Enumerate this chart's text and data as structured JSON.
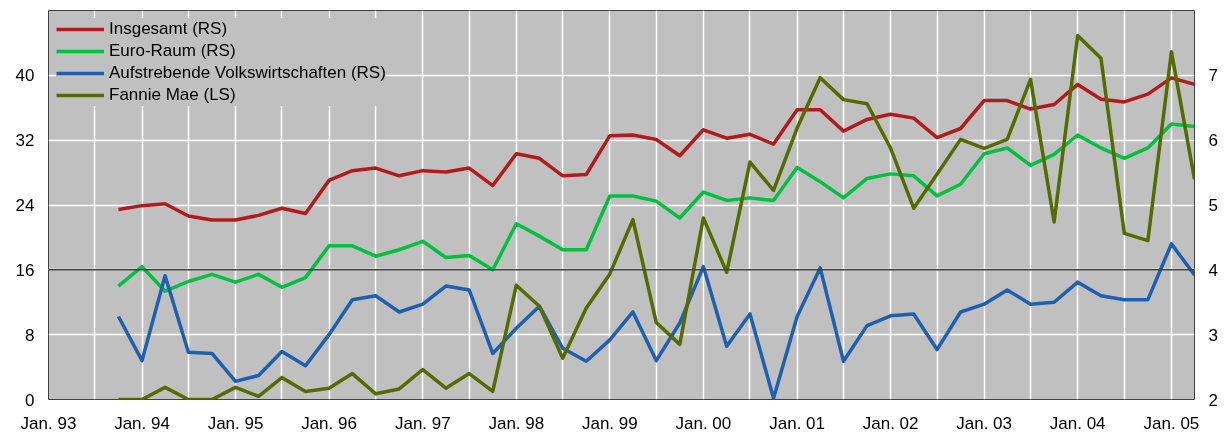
{
  "chart_data": {
    "type": "line",
    "x": [
      "1993-10",
      "1994-01",
      "1994-04",
      "1994-07",
      "1994-10",
      "1995-01",
      "1995-04",
      "1995-07",
      "1995-10",
      "1996-01",
      "1996-04",
      "1996-07",
      "1996-10",
      "1997-01",
      "1997-04",
      "1997-07",
      "1997-10",
      "1998-01",
      "1998-04",
      "1998-07",
      "1998-10",
      "1999-01",
      "1999-04",
      "1999-07",
      "1999-10",
      "2000-01",
      "2000-04",
      "2000-07",
      "2000-10",
      "2001-01",
      "2001-04",
      "2001-07",
      "2001-10",
      "2002-01",
      "2002-04",
      "2002-07",
      "2002-10",
      "2003-01",
      "2003-04",
      "2003-07",
      "2003-10",
      "2004-01",
      "2004-04",
      "2004-07",
      "2004-10",
      "2005-01",
      "2005-04"
    ],
    "series": [
      {
        "name": "Insgesamt (RS)",
        "color": "#b01c1c",
        "axis": "y2",
        "values": [
          4.93,
          4.99,
          5.02,
          4.83,
          4.77,
          4.77,
          4.84,
          4.95,
          4.87,
          5.38,
          5.53,
          5.57,
          5.45,
          5.53,
          5.51,
          5.57,
          5.3,
          5.79,
          5.72,
          5.45,
          5.47,
          6.07,
          6.08,
          6.01,
          5.76,
          6.16,
          6.03,
          6.09,
          5.94,
          6.47,
          6.47,
          6.14,
          6.32,
          6.4,
          6.34,
          6.04,
          6.18,
          6.61,
          6.61,
          6.48,
          6.55,
          6.86,
          6.63,
          6.59,
          6.71,
          6.96,
          6.86
        ]
      },
      {
        "name": "Euro-Raum (RS)",
        "color": "#00c040",
        "axis": "y2",
        "values": [
          3.75,
          4.05,
          3.67,
          3.82,
          3.93,
          3.81,
          3.93,
          3.73,
          3.88,
          4.37,
          4.37,
          4.21,
          4.31,
          4.44,
          4.19,
          4.22,
          4.0,
          4.71,
          4.52,
          4.31,
          4.31,
          5.14,
          5.14,
          5.06,
          4.8,
          5.2,
          5.07,
          5.11,
          5.07,
          5.58,
          5.36,
          5.11,
          5.41,
          5.48,
          5.45,
          5.14,
          5.32,
          5.79,
          5.88,
          5.61,
          5.78,
          6.08,
          5.88,
          5.72,
          5.88,
          6.25,
          6.21
        ]
      },
      {
        "name": "Aufstrebende Volkswirtschaften (RS)",
        "color": "#1f5fb0",
        "axis": "y2",
        "values": [
          3.28,
          2.6,
          3.91,
          2.73,
          2.71,
          2.28,
          2.37,
          2.74,
          2.52,
          3.0,
          3.54,
          3.6,
          3.35,
          3.47,
          3.75,
          3.69,
          2.71,
          3.1,
          3.44,
          2.79,
          2.59,
          2.92,
          3.35,
          2.6,
          3.18,
          4.05,
          2.82,
          3.32,
          2.02,
          3.28,
          4.03,
          2.59,
          3.14,
          3.29,
          3.32,
          2.77,
          3.35,
          3.47,
          3.69,
          3.47,
          3.5,
          3.81,
          3.6,
          3.54,
          3.54,
          4.4,
          3.92
        ]
      },
      {
        "name": "Fannie Mae (LS)",
        "color": "#556b00",
        "axis": "y",
        "values": [
          0,
          0,
          1.5,
          0,
          0,
          1.5,
          0.4,
          2.7,
          1.0,
          1.4,
          3.2,
          0.7,
          1.3,
          3.7,
          1.4,
          3.2,
          1.0,
          14.1,
          11.5,
          5.1,
          11.3,
          15.5,
          22.2,
          9.5,
          6.8,
          22.4,
          15.7,
          29.3,
          25.8,
          33.5,
          39.7,
          37.0,
          36.5,
          31.0,
          23.6,
          27.8,
          32.1,
          31.0,
          32.1,
          39.5,
          21.9,
          44.9,
          42.1,
          20.5,
          19.6,
          42.9,
          27.2
        ]
      }
    ],
    "xlim": [
      "1993-01",
      "2005-04"
    ],
    "xticks": [
      {
        "value": "1993-01",
        "label": "Jan. 93"
      },
      {
        "value": "1993-07",
        "label": null
      },
      {
        "value": "1994-01",
        "label": "Jan. 94"
      },
      {
        "value": "1994-07",
        "label": null
      },
      {
        "value": "1995-01",
        "label": "Jan. 95"
      },
      {
        "value": "1995-07",
        "label": null
      },
      {
        "value": "1996-01",
        "label": "Jan. 96"
      },
      {
        "value": "1996-07",
        "label": null
      },
      {
        "value": "1997-01",
        "label": "Jan. 97"
      },
      {
        "value": "1997-07",
        "label": null
      },
      {
        "value": "1998-01",
        "label": "Jan. 98"
      },
      {
        "value": "1998-07",
        "label": null
      },
      {
        "value": "1999-01",
        "label": "Jan. 99"
      },
      {
        "value": "1999-07",
        "label": null
      },
      {
        "value": "2000-01",
        "label": "Jan. 00"
      },
      {
        "value": "2000-07",
        "label": null
      },
      {
        "value": "2001-01",
        "label": "Jan. 01"
      },
      {
        "value": "2001-07",
        "label": null
      },
      {
        "value": "2002-01",
        "label": "Jan. 02"
      },
      {
        "value": "2002-07",
        "label": null
      },
      {
        "value": "2003-01",
        "label": "Jan. 03"
      },
      {
        "value": "2003-07",
        "label": null
      },
      {
        "value": "2004-01",
        "label": "Jan. 04"
      },
      {
        "value": "2004-07",
        "label": null
      },
      {
        "value": "2005-01",
        "label": "Jan. 05"
      }
    ],
    "ylim": [
      0,
      48
    ],
    "yticks": [
      0,
      8,
      16,
      24,
      32,
      40
    ],
    "y2lim": [
      2,
      8
    ],
    "y2ticks": [
      2,
      3,
      4,
      5,
      6,
      7
    ],
    "ref_lines": [
      {
        "axis": "y",
        "value": 16,
        "label": null,
        "color": "#404040"
      }
    ],
    "grid": true,
    "legend": "top left",
    "marker": "none",
    "line_style": "solid"
  }
}
